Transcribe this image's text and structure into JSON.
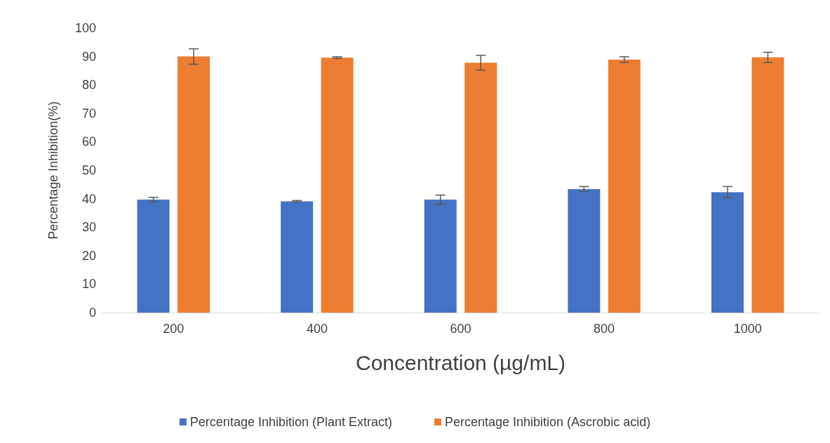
{
  "chart_data": {
    "type": "bar",
    "xlabel": "Concentration (µg/mL)",
    "ylabel": "Percentage Inhibition(%)",
    "categories": [
      "200",
      "400",
      "600",
      "800",
      "1000"
    ],
    "series": [
      {
        "name": "Percentage Inhibition (Plant Extract)",
        "color": "#4472c4",
        "values": [
          39.7,
          39.1,
          39.7,
          43.4,
          42.3
        ],
        "errors": [
          0.8,
          0.3,
          1.6,
          0.9,
          2
        ]
      },
      {
        "name": "Percentage Inhibition (Ascrobic acid)",
        "color": "#ed7d31",
        "values": [
          90,
          89.6,
          87.8,
          88.9,
          89.7
        ],
        "errors": [
          2.7,
          0.3,
          2.6,
          1,
          1.8
        ]
      }
    ],
    "ylim": [
      0,
      100
    ],
    "yticks": [
      0,
      10,
      20,
      30,
      40,
      50,
      60,
      70,
      80,
      90,
      100
    ],
    "grid": false,
    "legend": "bottom"
  }
}
